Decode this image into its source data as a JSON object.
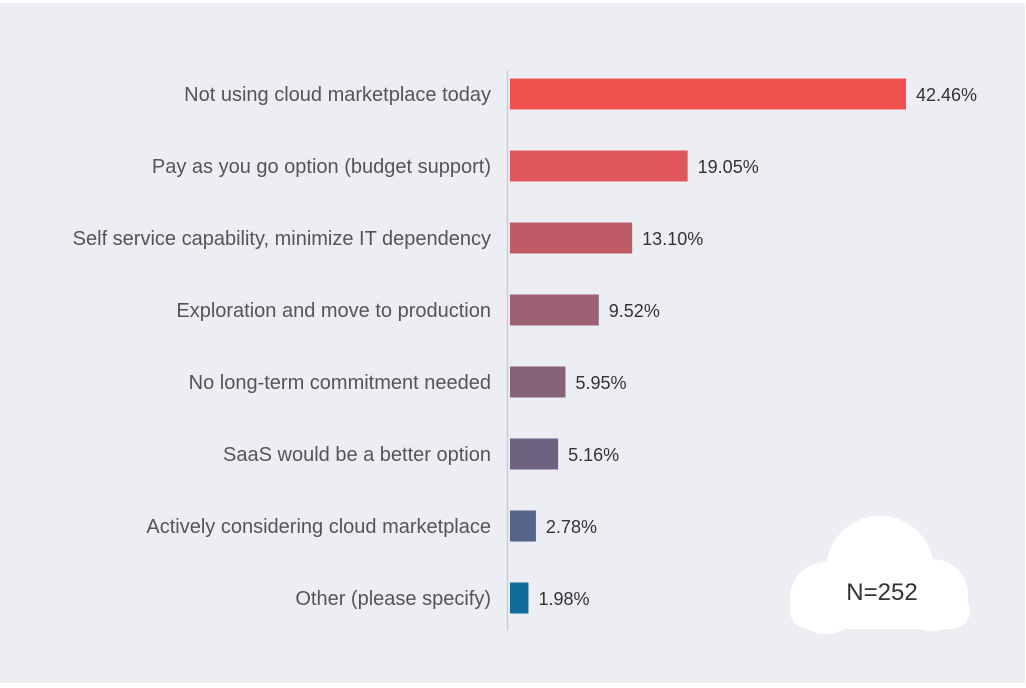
{
  "chart_data": {
    "type": "bar",
    "orientation": "horizontal",
    "categories": [
      "Not using cloud marketplace today",
      "Pay as you go option (budget support)",
      "Self service capability, minimize IT dependency",
      "Exploration and move to production",
      "No long-term commitment needed",
      "SaaS would be a better option",
      "Actively considering cloud marketplace",
      "Other (please specify)"
    ],
    "values": [
      42.46,
      19.05,
      13.1,
      9.52,
      5.95,
      5.16,
      2.78,
      1.98
    ],
    "value_labels": [
      "42.46%",
      "19.05%",
      "13.10%",
      "9.52%",
      "5.95%",
      "5.16%",
      "2.78%",
      "1.98%"
    ],
    "bar_colors": [
      "#f0514c",
      "#e0565a",
      "#bf5b66",
      "#9e6173",
      "#88617a",
      "#6d6282",
      "#55658a",
      "#106a9b"
    ],
    "xlim": [
      0,
      42.46
    ],
    "grid": false,
    "legend": "none",
    "note": "N=252"
  }
}
